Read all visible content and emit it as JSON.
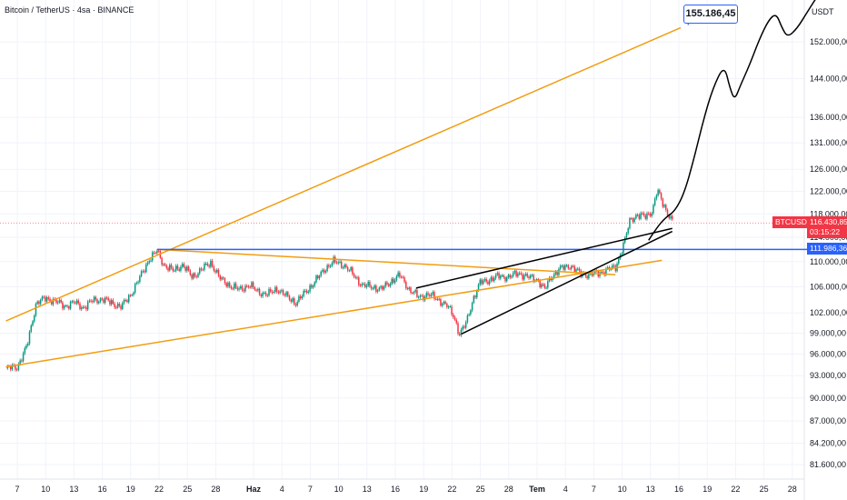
{
  "header": {
    "title": "Bitcoin / TetherUS · 4sa · BINANCE",
    "currency": "USDT"
  },
  "colors": {
    "up": "#089981",
    "down": "#f23645",
    "orange": "#f29d12",
    "blue": "#2962ff",
    "black": "#000000"
  },
  "price_labels": {
    "symbol": "BTCUSDT",
    "last_price": "116.430,85",
    "countdown": "03:15:22",
    "level": "111.986,36",
    "target": "155.186,45"
  },
  "chart_data": {
    "type": "candlestick",
    "scale": "log",
    "grid": true,
    "ylim": [
      80000,
      162000
    ],
    "y_ticks": [
      {
        "value": 81600,
        "label": "81.600,00"
      },
      {
        "value": 84200,
        "label": "84.200,00"
      },
      {
        "value": 87000,
        "label": "87.000,00"
      },
      {
        "value": 90000,
        "label": "90.000,00"
      },
      {
        "value": 93000,
        "label": "93.000,00"
      },
      {
        "value": 96000,
        "label": "96.000,00"
      },
      {
        "value": 99000,
        "label": "99.000,00"
      },
      {
        "value": 102000,
        "label": "102.000,00"
      },
      {
        "value": 106000,
        "label": "106.000,00"
      },
      {
        "value": 110000,
        "label": "110.000,00"
      },
      {
        "value": 114000,
        "label": "114.000,00"
      },
      {
        "value": 118000,
        "label": "118.000,00"
      },
      {
        "value": 122000,
        "label": "122.000,00"
      },
      {
        "value": 126000,
        "label": "126.000,00"
      },
      {
        "value": 131000,
        "label": "131.000,00"
      },
      {
        "value": 136000,
        "label": "136.000,00"
      },
      {
        "value": 144000,
        "label": "144.000,00"
      },
      {
        "value": 152000,
        "label": "152.000,00"
      }
    ],
    "x_ticks": [
      {
        "day": 0,
        "label": "7"
      },
      {
        "day": 3,
        "label": "10"
      },
      {
        "day": 6,
        "label": "13"
      },
      {
        "day": 9,
        "label": "16"
      },
      {
        "day": 12,
        "label": "19"
      },
      {
        "day": 15,
        "label": "22"
      },
      {
        "day": 18,
        "label": "25"
      },
      {
        "day": 21,
        "label": "28"
      },
      {
        "day": 25,
        "label": "Haz",
        "bold": true
      },
      {
        "day": 28,
        "label": "4"
      },
      {
        "day": 31,
        "label": "7"
      },
      {
        "day": 34,
        "label": "10"
      },
      {
        "day": 37,
        "label": "13"
      },
      {
        "day": 40,
        "label": "16"
      },
      {
        "day": 43,
        "label": "19"
      },
      {
        "day": 46,
        "label": "22"
      },
      {
        "day": 49,
        "label": "25"
      },
      {
        "day": 52,
        "label": "28"
      },
      {
        "day": 55,
        "label": "Tem",
        "bold": true
      },
      {
        "day": 58,
        "label": "4"
      },
      {
        "day": 61,
        "label": "7"
      },
      {
        "day": 64,
        "label": "10"
      },
      {
        "day": 67,
        "label": "13"
      },
      {
        "day": 70,
        "label": "16"
      },
      {
        "day": 73,
        "label": "19"
      },
      {
        "day": 76,
        "label": "22"
      },
      {
        "day": 79,
        "label": "25"
      },
      {
        "day": 82,
        "label": "28"
      }
    ],
    "close_path": [
      [
        -1.2,
        94000
      ],
      [
        0,
        94200
      ],
      [
        1,
        97000
      ],
      [
        2,
        103500
      ],
      [
        3,
        104200
      ],
      [
        4,
        103800
      ],
      [
        5,
        103000
      ],
      [
        6,
        103600
      ],
      [
        7,
        102800
      ],
      [
        8,
        103900
      ],
      [
        9,
        104100
      ],
      [
        10,
        103500
      ],
      [
        11,
        102900
      ],
      [
        12,
        104800
      ],
      [
        13,
        107500
      ],
      [
        14,
        110500
      ],
      [
        14.8,
        111700
      ],
      [
        15.5,
        109500
      ],
      [
        16.5,
        108500
      ],
      [
        17.5,
        109500
      ],
      [
        18.5,
        107500
      ],
      [
        19.5,
        108800
      ],
      [
        20.5,
        109800
      ],
      [
        21.5,
        107200
      ],
      [
        22.5,
        106200
      ],
      [
        23.5,
        105500
      ],
      [
        24.5,
        106300
      ],
      [
        25.5,
        105200
      ],
      [
        26.5,
        104800
      ],
      [
        27.5,
        105700
      ],
      [
        28.5,
        104500
      ],
      [
        29.5,
        103500
      ],
      [
        30.5,
        105200
      ],
      [
        31.5,
        106800
      ],
      [
        32.5,
        108800
      ],
      [
        33.5,
        110000
      ],
      [
        34.5,
        109500
      ],
      [
        35.5,
        108000
      ],
      [
        36.5,
        106200
      ],
      [
        37.5,
        106000
      ],
      [
        38.5,
        105600
      ],
      [
        39.5,
        106800
      ],
      [
        40.5,
        107800
      ],
      [
        41.5,
        105500
      ],
      [
        42.5,
        104400
      ],
      [
        43.5,
        104800
      ],
      [
        44.5,
        104100
      ],
      [
        45.5,
        103000
      ],
      [
        46.2,
        101500
      ],
      [
        46.8,
        98800
      ],
      [
        47.5,
        100500
      ],
      [
        48.2,
        104000
      ],
      [
        49,
        106700
      ],
      [
        50,
        107100
      ],
      [
        51,
        107700
      ],
      [
        52,
        107500
      ],
      [
        53,
        108200
      ],
      [
        54,
        107500
      ],
      [
        55,
        107200
      ],
      [
        55.8,
        105600
      ],
      [
        56.5,
        107600
      ],
      [
        57.5,
        108900
      ],
      [
        58.5,
        109400
      ],
      [
        59.5,
        108100
      ],
      [
        60.5,
        107900
      ],
      [
        61.5,
        108200
      ],
      [
        62.5,
        108700
      ],
      [
        63.3,
        109100
      ],
      [
        63.8,
        111200
      ],
      [
        64.3,
        113500
      ],
      [
        64.8,
        116800
      ],
      [
        65.5,
        117800
      ],
      [
        66.5,
        117500
      ],
      [
        67.2,
        118600
      ],
      [
        67.7,
        122200
      ],
      [
        68.3,
        119800
      ],
      [
        68.9,
        117900
      ],
      [
        69.3,
        116800
      ]
    ],
    "forecast_path": [
      [
        66.8,
        113500
      ],
      [
        67.6,
        115500
      ],
      [
        68.6,
        117400
      ],
      [
        69.6,
        118500
      ],
      [
        70.6,
        121800
      ],
      [
        71.6,
        128000
      ],
      [
        72.6,
        135500
      ],
      [
        73.6,
        142000
      ],
      [
        74.8,
        147000
      ],
      [
        75.4,
        142000
      ],
      [
        75.9,
        139500
      ],
      [
        76.5,
        142500
      ],
      [
        77.5,
        147000
      ],
      [
        78.5,
        152500
      ],
      [
        79.5,
        157000
      ],
      [
        80.3,
        158500
      ],
      [
        80.9,
        155200
      ],
      [
        81.5,
        153000
      ],
      [
        82.5,
        155000
      ],
      [
        83.5,
        158500
      ],
      [
        84.5,
        162000
      ]
    ],
    "lines": [
      {
        "name": "ascending-channel-upper",
        "color": "#f29d12",
        "points": [
          [
            -1.2,
            100800
          ],
          [
            70.2,
            155186
          ]
        ]
      },
      {
        "name": "ascending-channel-lower",
        "color": "#f29d12",
        "points": [
          [
            -1.2,
            94200
          ],
          [
            68.2,
            110200
          ]
        ]
      },
      {
        "name": "descending-resistance",
        "color": "#f29d12",
        "points": [
          [
            14.8,
            111986
          ],
          [
            63.3,
            107900
          ]
        ]
      },
      {
        "name": "horizontal-level",
        "color": "#2962ff",
        "points": [
          [
            14.8,
            111986
          ],
          [
            85.6,
            111986
          ]
        ]
      },
      {
        "name": "rising-wedge-upper",
        "color": "#000000",
        "points": [
          [
            42.2,
            105800
          ],
          [
            69.3,
            115500
          ]
        ]
      },
      {
        "name": "rising-wedge-lower",
        "color": "#000000",
        "points": [
          [
            47,
            98900
          ],
          [
            69.3,
            115000
          ]
        ]
      }
    ],
    "target_value": 155186.45,
    "last_value": 116430.85,
    "level_value": 111986.36
  }
}
